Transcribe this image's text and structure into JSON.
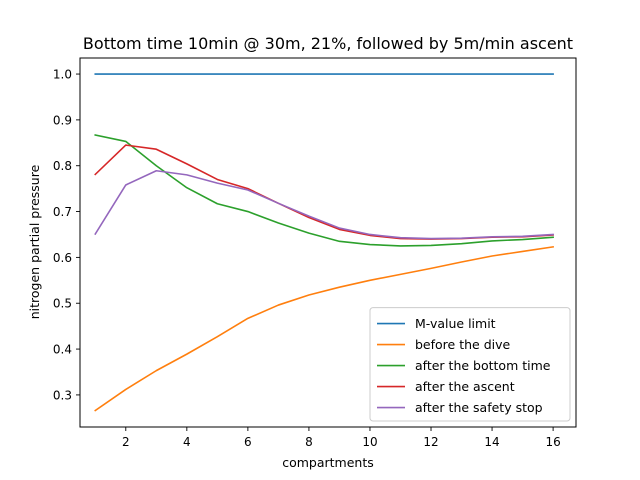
{
  "chart_data": {
    "type": "line",
    "title": "Bottom time 10min @ 30m, 21%, followed by 5m/min ascent",
    "xlabel": "compartments",
    "ylabel": "nitrogen partial pressure",
    "xlim": [
      0.5,
      16.75
    ],
    "ylim": [
      0.23,
      1.035
    ],
    "xticks": [
      2,
      4,
      6,
      8,
      10,
      12,
      14,
      16
    ],
    "yticks": [
      0.3,
      0.4,
      0.5,
      0.6,
      0.7,
      0.8,
      0.9,
      1.0
    ],
    "ytick_labels": [
      "0.3",
      "0.4",
      "0.5",
      "0.6",
      "0.7",
      "0.8",
      "0.9",
      "1.0"
    ],
    "grid": false,
    "legend_position": "lower-right",
    "x": [
      1,
      2,
      3,
      4,
      5,
      6,
      7,
      8,
      9,
      10,
      11,
      12,
      13,
      14,
      15,
      16
    ],
    "series": [
      {
        "name": "M-value limit",
        "color": "#1f77b4",
        "values": [
          1.0,
          1.0,
          1.0,
          1.0,
          1.0,
          1.0,
          1.0,
          1.0,
          1.0,
          1.0,
          1.0,
          1.0,
          1.0,
          1.0,
          1.0,
          1.0
        ]
      },
      {
        "name": "before the dive",
        "color": "#ff7f0e",
        "values": [
          0.266,
          0.312,
          0.353,
          0.389,
          0.427,
          0.467,
          0.496,
          0.518,
          0.535,
          0.55,
          0.563,
          0.576,
          0.59,
          0.603,
          0.613,
          0.623
        ]
      },
      {
        "name": "after the bottom time",
        "color": "#2ca02c",
        "values": [
          0.867,
          0.853,
          0.8,
          0.752,
          0.717,
          0.7,
          0.675,
          0.653,
          0.635,
          0.628,
          0.625,
          0.626,
          0.63,
          0.636,
          0.639,
          0.644
        ]
      },
      {
        "name": "after the ascent",
        "color": "#d62728",
        "values": [
          0.781,
          0.845,
          0.836,
          0.804,
          0.77,
          0.75,
          0.718,
          0.687,
          0.661,
          0.648,
          0.641,
          0.64,
          0.641,
          0.644,
          0.645,
          0.649
        ]
      },
      {
        "name": "after the safety stop",
        "color": "#9467bd",
        "values": [
          0.651,
          0.758,
          0.789,
          0.78,
          0.762,
          0.747,
          0.718,
          0.69,
          0.664,
          0.65,
          0.643,
          0.641,
          0.642,
          0.645,
          0.646,
          0.65
        ]
      }
    ]
  }
}
